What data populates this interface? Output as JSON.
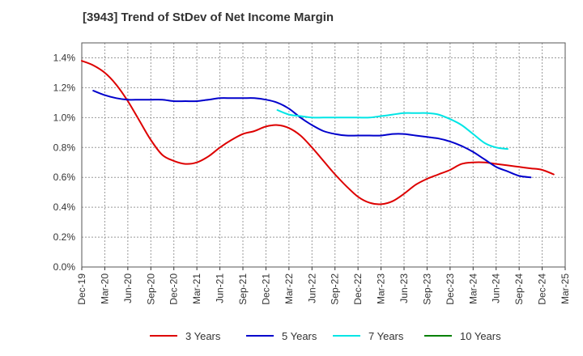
{
  "title": "[3943]  Trend of StDev of Net Income Margin",
  "chart_data": {
    "type": "line",
    "title": "[3943]  Trend of StDev of Net Income Margin",
    "xlabel": "",
    "ylabel": "",
    "ylim": [
      0,
      1.5
    ],
    "y_ticks": [
      "0.0%",
      "0.2%",
      "0.4%",
      "0.6%",
      "0.8%",
      "1.0%",
      "1.2%",
      "1.4%"
    ],
    "x_ticks": [
      "Dec-19",
      "Mar-20",
      "Jun-20",
      "Sep-20",
      "Dec-20",
      "Mar-21",
      "Jun-21",
      "Sep-21",
      "Dec-21",
      "Mar-22",
      "Jun-22",
      "Sep-22",
      "Dec-22",
      "Mar-23",
      "Jun-23",
      "Sep-23",
      "Dec-23",
      "Mar-24",
      "Jun-24",
      "Sep-24",
      "Dec-24",
      "Mar-25"
    ],
    "grid": true,
    "legend_position": "bottom",
    "series": [
      {
        "name": "3 Years",
        "color": "#dd0000",
        "values": [
          1.38,
          1.35,
          1.3,
          1.22,
          1.11,
          0.98,
          0.85,
          0.75,
          0.71,
          0.69,
          0.7,
          0.74,
          0.8,
          0.85,
          0.89,
          0.91,
          0.94,
          0.95,
          0.93,
          0.88,
          0.8,
          0.71,
          0.62,
          0.54,
          0.47,
          0.43,
          0.42,
          0.44,
          0.49,
          0.55,
          0.59,
          0.62,
          0.65,
          0.69,
          0.7,
          0.7,
          0.69,
          0.68,
          0.67,
          0.66,
          0.65,
          0.62
        ]
      },
      {
        "name": "5 Years",
        "color": "#0000cc",
        "values": [
          null,
          1.18,
          1.15,
          1.13,
          1.12,
          1.12,
          1.12,
          1.12,
          1.11,
          1.11,
          1.11,
          1.12,
          1.13,
          1.13,
          1.13,
          1.13,
          1.12,
          1.1,
          1.06,
          1.0,
          0.95,
          0.91,
          0.89,
          0.88,
          0.88,
          0.88,
          0.88,
          0.89,
          0.89,
          0.88,
          0.87,
          0.86,
          0.84,
          0.81,
          0.77,
          0.72,
          0.67,
          0.64,
          0.61,
          0.6
        ]
      },
      {
        "name": "7 Years",
        "color": "#00e5e5",
        "values": [
          null,
          null,
          null,
          null,
          null,
          null,
          null,
          null,
          null,
          null,
          null,
          null,
          null,
          null,
          null,
          null,
          null,
          1.05,
          1.02,
          1.01,
          1.0,
          1.0,
          1.0,
          1.0,
          1.0,
          1.0,
          1.01,
          1.02,
          1.03,
          1.03,
          1.03,
          1.02,
          0.99,
          0.95,
          0.89,
          0.83,
          0.8,
          0.79
        ]
      },
      {
        "name": "10 Years",
        "color": "#008000",
        "values": []
      }
    ]
  }
}
